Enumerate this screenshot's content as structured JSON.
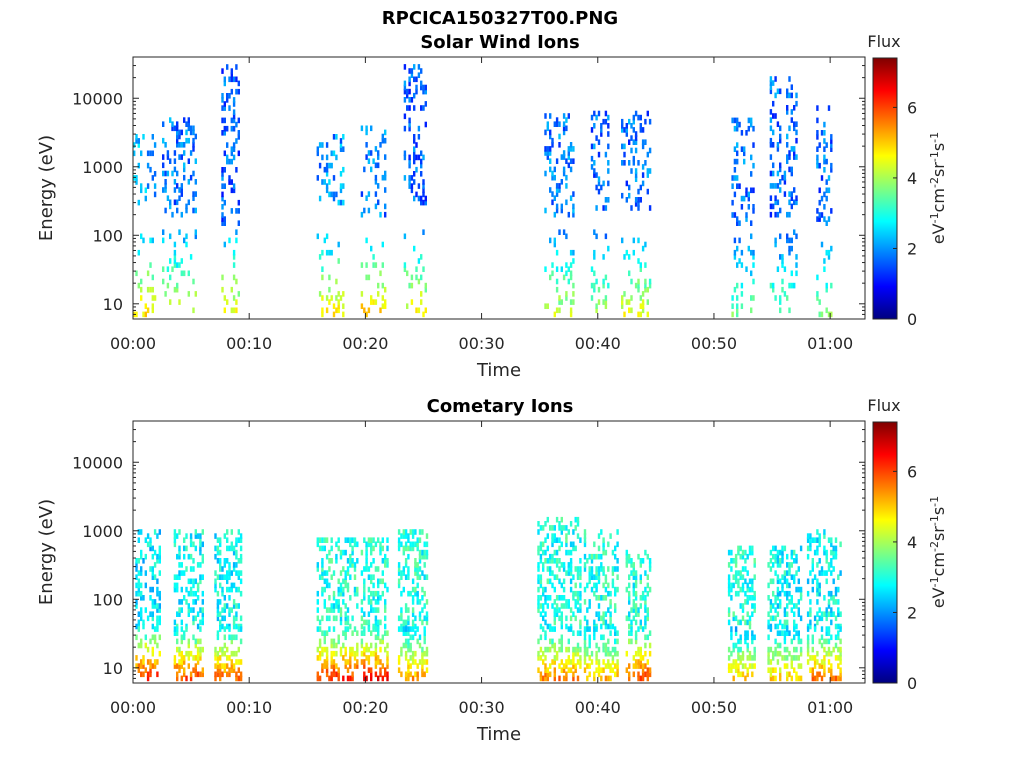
{
  "figure": {
    "title": "RPCICA150327T00.PNG",
    "colormap": "jet",
    "colorbar_label": "Flux"
  },
  "chart_data": [
    {
      "type": "heatmap",
      "title": "Solar Wind Ions",
      "xlabel": "Time",
      "ylabel": "Energy (eV)",
      "yscale": "log",
      "x_ticks": [
        "00:00",
        "00:10",
        "00:20",
        "00:30",
        "00:40",
        "00:50",
        "01:00"
      ],
      "x_range_minutes": [
        0,
        63
      ],
      "y_ticks": [
        10,
        100,
        1000,
        10000
      ],
      "y_range": [
        6,
        40000
      ],
      "colorbar": {
        "label": "Flux",
        "unit": "eV-1cm-2sr-1s-1",
        "ticks": [
          0,
          2,
          4,
          6
        ],
        "range": [
          0,
          7.4
        ]
      },
      "bursts": [
        {
          "t": [
            0.0,
            1.8
          ],
          "emin": 300,
          "emax": 3000,
          "flux": 2.2,
          "low_flux": 4.8
        },
        {
          "t": [
            2.5,
            5.5
          ],
          "emin": 200,
          "emax": 5000,
          "flux": 1.8,
          "low_flux": 4.4
        },
        {
          "t": [
            7.6,
            9.0
          ],
          "emin": 150,
          "emax": 30000,
          "flux": 1.6,
          "low_flux": 4.6
        },
        {
          "t": [
            15.8,
            18.0
          ],
          "emin": 300,
          "emax": 3000,
          "flux": 2.0,
          "low_flux": 4.8
        },
        {
          "t": [
            19.6,
            21.6
          ],
          "emin": 200,
          "emax": 4000,
          "flux": 1.8,
          "low_flux": 5.0
        },
        {
          "t": [
            23.3,
            25.1
          ],
          "emin": 300,
          "emax": 30000,
          "flux": 1.6,
          "low_flux": 4.6
        },
        {
          "t": [
            35.4,
            38.0
          ],
          "emin": 200,
          "emax": 6000,
          "flux": 1.8,
          "low_flux": 4.2
        },
        {
          "t": [
            39.4,
            41.0
          ],
          "emin": 250,
          "emax": 6000,
          "flux": 1.7,
          "low_flux": 4.0
        },
        {
          "t": [
            42.0,
            44.5
          ],
          "emin": 250,
          "emax": 6000,
          "flux": 1.7,
          "low_flux": 4.4
        },
        {
          "t": [
            51.5,
            53.5
          ],
          "emin": 150,
          "emax": 5000,
          "flux": 1.7,
          "low_flux": 3.6
        },
        {
          "t": [
            54.8,
            57.2
          ],
          "emin": 200,
          "emax": 20000,
          "flux": 1.7,
          "low_flux": 3.6
        },
        {
          "t": [
            58.8,
            60.2
          ],
          "emin": 150,
          "emax": 8000,
          "flux": 1.7,
          "low_flux": 3.8
        }
      ]
    },
    {
      "type": "heatmap",
      "title": "Cometary Ions",
      "xlabel": "Time",
      "ylabel": "Energy (eV)",
      "yscale": "log",
      "x_ticks": [
        "00:00",
        "00:10",
        "00:20",
        "00:30",
        "00:40",
        "00:50",
        "01:00"
      ],
      "x_range_minutes": [
        0,
        63
      ],
      "y_ticks": [
        10,
        100,
        1000,
        10000
      ],
      "y_range": [
        6,
        40000
      ],
      "colorbar": {
        "label": "Flux",
        "unit": "eV-1cm-2sr-1s-1",
        "ticks": [
          0,
          2,
          4,
          6
        ],
        "range": [
          0,
          7.4
        ]
      },
      "bursts": [
        {
          "t": [
            0.2,
            2.2
          ],
          "emin": 40,
          "emax": 1000,
          "flux": 2.6,
          "low_flux": 6.2
        },
        {
          "t": [
            3.5,
            6.0
          ],
          "emin": 40,
          "emax": 1000,
          "flux": 2.8,
          "low_flux": 6.0
        },
        {
          "t": [
            7.0,
            9.2
          ],
          "emin": 40,
          "emax": 1000,
          "flux": 2.8,
          "low_flux": 5.8
        },
        {
          "t": [
            15.8,
            19.2
          ],
          "emin": 40,
          "emax": 800,
          "flux": 3.0,
          "low_flux": 6.2
        },
        {
          "t": [
            19.6,
            21.8
          ],
          "emin": 40,
          "emax": 800,
          "flux": 3.0,
          "low_flux": 6.4
        },
        {
          "t": [
            22.8,
            25.2
          ],
          "emin": 40,
          "emax": 1000,
          "flux": 3.0,
          "low_flux": 5.4
        },
        {
          "t": [
            34.8,
            38.6
          ],
          "emin": 40,
          "emax": 1500,
          "flux": 3.0,
          "low_flux": 5.6
        },
        {
          "t": [
            38.8,
            41.8
          ],
          "emin": 40,
          "emax": 1000,
          "flux": 3.0,
          "low_flux": 5.2
        },
        {
          "t": [
            42.4,
            44.6
          ],
          "emin": 40,
          "emax": 500,
          "flux": 3.0,
          "low_flux": 6.0
        },
        {
          "t": [
            51.2,
            53.6
          ],
          "emin": 40,
          "emax": 600,
          "flux": 3.0,
          "low_flux": 5.0
        },
        {
          "t": [
            54.6,
            57.6
          ],
          "emin": 40,
          "emax": 600,
          "flux": 2.8,
          "low_flux": 5.0
        },
        {
          "t": [
            58.0,
            61.0
          ],
          "emin": 40,
          "emax": 1000,
          "flux": 2.8,
          "low_flux": 5.6
        }
      ]
    }
  ]
}
